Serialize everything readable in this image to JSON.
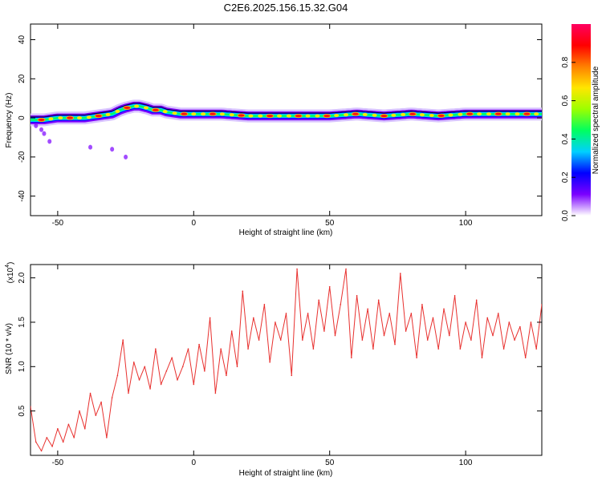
{
  "title": "C2E6.2025.156.15.32.G04",
  "chart_data": [
    {
      "type": "heatmap",
      "xlabel": "Height of straight line (km)",
      "ylabel": "Frequency (Hz)",
      "xlim": [
        -60,
        128
      ],
      "ylim": [
        -50,
        48
      ],
      "xticks": [
        "-50",
        "0",
        "50",
        "100"
      ],
      "yticks": [
        "-40",
        "-20",
        "0",
        "20",
        "40"
      ],
      "colorbar": {
        "label": "Normalized spectral amplitude",
        "range": [
          0,
          1
        ],
        "ticks": [
          "0.0",
          "0.2",
          "0.4",
          "0.6",
          "0.8"
        ],
        "colors": [
          "#ffffff",
          "#7b00ff",
          "#0000ff",
          "#00d0ff",
          "#00ff60",
          "#9cff00",
          "#ffe600",
          "#ff8000",
          "#ff0000",
          "#ff0060"
        ]
      },
      "ridge": {
        "x": [
          -60,
          -55,
          -50,
          -45,
          -40,
          -35,
          -30,
          -27,
          -25,
          -22,
          -20,
          -17,
          -15,
          -12,
          -10,
          -5,
          0,
          10,
          20,
          30,
          40,
          50,
          60,
          70,
          80,
          90,
          100,
          110,
          120,
          128
        ],
        "y": [
          -1,
          -1,
          0,
          0,
          0,
          1,
          2,
          4,
          5,
          6,
          6,
          5,
          4,
          4,
          3,
          2,
          2,
          2,
          1,
          1,
          1,
          1,
          2,
          1,
          2,
          1,
          2,
          2,
          2,
          2
        ]
      },
      "scatter_points": [
        {
          "x": -55,
          "y": -8
        },
        {
          "x": -53,
          "y": -12
        },
        {
          "x": -56,
          "y": -6
        },
        {
          "x": -38,
          "y": -15
        },
        {
          "x": -30,
          "y": -16
        },
        {
          "x": -25,
          "y": -20
        },
        {
          "x": -58,
          "y": -4
        }
      ]
    },
    {
      "type": "line",
      "xlabel": "Height of straight line (km)",
      "ylabel": "SNR (10 * v/v)",
      "y_multiplier": "(x10",
      "y_multiplier_exp": "4",
      "xlim": [
        -60,
        128
      ],
      "ylim": [
        0,
        2.15
      ],
      "xticks": [
        "-50",
        "0",
        "50",
        "100"
      ],
      "yticks": [
        "0.5",
        "1.0",
        "1.5",
        "2.0"
      ],
      "color": "#e8302e",
      "series": [
        {
          "x": [
            -60,
            -58,
            -56,
            -54,
            -52,
            -50,
            -48,
            -46,
            -44,
            -42,
            -40,
            -38,
            -36,
            -34,
            -32,
            -30,
            -28,
            -26,
            -24,
            -22,
            -20,
            -18,
            -16,
            -14,
            -12,
            -10,
            -8,
            -6,
            -4,
            -2,
            0,
            2,
            4,
            6,
            8,
            10,
            12,
            14,
            16,
            18,
            20,
            22,
            24,
            26,
            28,
            30,
            32,
            34,
            36,
            38,
            40,
            42,
            44,
            46,
            48,
            50,
            52,
            54,
            56,
            58,
            60,
            62,
            64,
            66,
            68,
            70,
            72,
            74,
            76,
            78,
            80,
            82,
            84,
            86,
            88,
            90,
            92,
            94,
            96,
            98,
            100,
            102,
            104,
            106,
            108,
            110,
            112,
            114,
            116,
            118,
            120,
            122,
            124,
            126,
            128
          ],
          "values": [
            0.55,
            0.15,
            0.05,
            0.2,
            0.1,
            0.3,
            0.15,
            0.35,
            0.2,
            0.5,
            0.3,
            0.7,
            0.45,
            0.6,
            0.2,
            0.65,
            0.9,
            1.3,
            0.7,
            1.05,
            0.85,
            1.0,
            0.75,
            1.2,
            0.8,
            0.95,
            1.1,
            0.85,
            1.0,
            1.2,
            0.8,
            1.25,
            0.95,
            1.55,
            0.7,
            1.2,
            0.9,
            1.4,
            1.0,
            1.85,
            1.2,
            1.55,
            1.3,
            1.7,
            1.05,
            1.5,
            1.3,
            1.6,
            0.9,
            2.1,
            1.3,
            1.6,
            1.2,
            1.75,
            1.4,
            1.9,
            1.35,
            1.7,
            2.1,
            1.1,
            1.8,
            1.3,
            1.65,
            1.2,
            1.75,
            1.35,
            1.6,
            1.25,
            2.05,
            1.4,
            1.6,
            1.1,
            1.7,
            1.3,
            1.55,
            1.2,
            1.65,
            1.35,
            1.8,
            1.2,
            1.5,
            1.3,
            1.75,
            1.1,
            1.55,
            1.35,
            1.6,
            1.2,
            1.5,
            1.3,
            1.45,
            1.1,
            1.5,
            1.2,
            1.7
          ]
        }
      ]
    }
  ]
}
